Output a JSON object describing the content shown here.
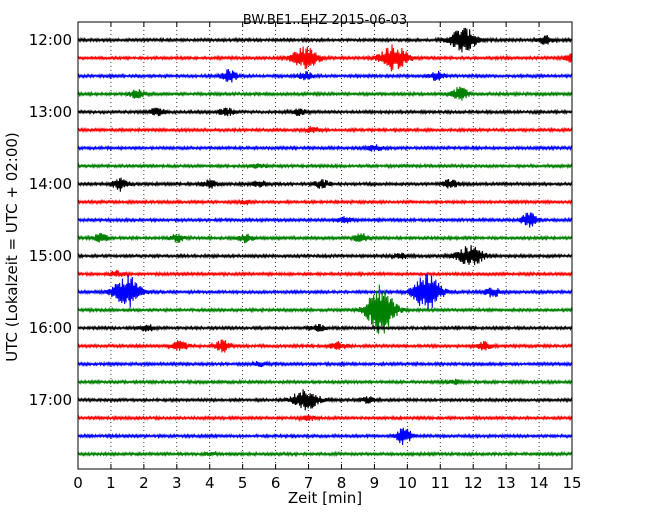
{
  "chart_data": {
    "type": "line",
    "title": "BW.BE1..EHZ 2015-06-03",
    "xlabel": "Zeit  [min]",
    "ylabel": "UTC (Lokalzeit = UTC + 02:00)",
    "xlim": [
      0,
      15
    ],
    "x_ticks": [
      "0",
      "1",
      "2",
      "3",
      "4",
      "5",
      "6",
      "7",
      "8",
      "9",
      "10",
      "11",
      "12",
      "13",
      "14",
      "15"
    ],
    "y_ticks": [
      {
        "label": "12:00",
        "minutes": 0
      },
      {
        "label": "13:00",
        "minutes": 60
      },
      {
        "label": "14:00",
        "minutes": 120
      },
      {
        "label": "15:00",
        "minutes": 180
      },
      {
        "label": "16:00",
        "minutes": 240
      },
      {
        "label": "17:00",
        "minutes": 300
      }
    ],
    "trace_interval_min": 15,
    "grid": true,
    "colors": [
      "#000000",
      "#ff0000",
      "#0000ff",
      "#008000"
    ],
    "traces": [
      {
        "start": "12:00",
        "events": [
          [
            11.7,
            12
          ],
          [
            14.2,
            4
          ]
        ]
      },
      {
        "start": "12:15",
        "events": [
          [
            6.9,
            11
          ],
          [
            9.6,
            13
          ],
          [
            15.0,
            4
          ]
        ]
      },
      {
        "start": "12:30",
        "events": [
          [
            4.6,
            6
          ],
          [
            6.9,
            4
          ],
          [
            10.9,
            4
          ]
        ]
      },
      {
        "start": "12:45",
        "events": [
          [
            1.8,
            4
          ],
          [
            11.6,
            7
          ]
        ]
      },
      {
        "start": "13:00",
        "events": [
          [
            2.4,
            4
          ],
          [
            4.5,
            4
          ],
          [
            6.7,
            3
          ]
        ]
      },
      {
        "start": "13:15",
        "events": [
          [
            7.1,
            3
          ]
        ]
      },
      {
        "start": "13:30",
        "events": [
          [
            9.0,
            3
          ]
        ]
      },
      {
        "start": "13:45",
        "events": [
          [
            5.5,
            2
          ]
        ]
      },
      {
        "start": "14:00",
        "events": [
          [
            1.3,
            7
          ],
          [
            4.0,
            4
          ],
          [
            5.5,
            3
          ],
          [
            7.4,
            4
          ],
          [
            11.3,
            4
          ]
        ]
      },
      {
        "start": "14:15",
        "events": [
          [
            5.1,
            2
          ]
        ]
      },
      {
        "start": "14:30",
        "events": [
          [
            8.1,
            3
          ],
          [
            13.7,
            7
          ]
        ]
      },
      {
        "start": "14:45",
        "events": [
          [
            0.7,
            4
          ],
          [
            3.0,
            4
          ],
          [
            5.1,
            4
          ],
          [
            8.6,
            4
          ]
        ]
      },
      {
        "start": "15:00",
        "events": [
          [
            9.8,
            3
          ],
          [
            11.9,
            10
          ]
        ]
      },
      {
        "start": "15:15",
        "events": [
          [
            1.2,
            3
          ]
        ]
      },
      {
        "start": "15:30",
        "events": [
          [
            1.5,
            16
          ],
          [
            10.6,
            18
          ],
          [
            12.6,
            5
          ]
        ]
      },
      {
        "start": "15:45",
        "events": [
          [
            9.2,
            25
          ]
        ]
      },
      {
        "start": "16:00",
        "events": [
          [
            2.1,
            3
          ],
          [
            7.3,
            3
          ]
        ]
      },
      {
        "start": "16:15",
        "events": [
          [
            3.1,
            5
          ],
          [
            4.4,
            6
          ],
          [
            7.9,
            4
          ],
          [
            12.3,
            4
          ]
        ]
      },
      {
        "start": "16:30",
        "events": [
          [
            5.5,
            2
          ]
        ]
      },
      {
        "start": "16:45",
        "events": [
          [
            11.4,
            2
          ]
        ]
      },
      {
        "start": "17:00",
        "events": [
          [
            6.9,
            10
          ],
          [
            8.8,
            3
          ]
        ]
      },
      {
        "start": "17:15",
        "events": [
          [
            7.0,
            2
          ]
        ]
      },
      {
        "start": "17:30",
        "events": [
          [
            9.9,
            8
          ]
        ]
      },
      {
        "start": "17:45",
        "events": [
          [
            4.0,
            1
          ]
        ]
      }
    ]
  }
}
